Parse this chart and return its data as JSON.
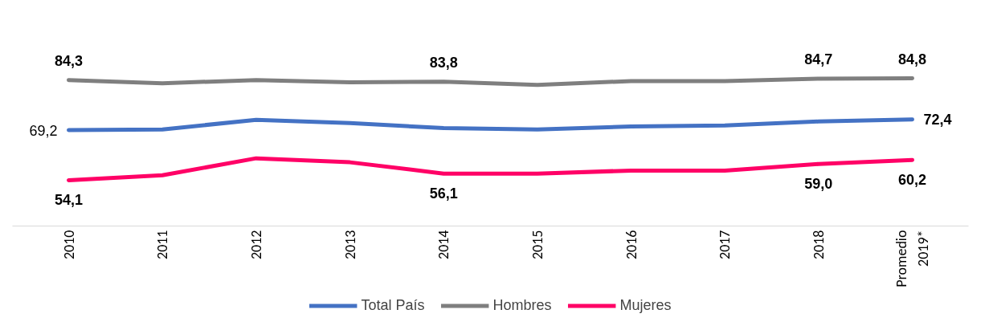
{
  "chart_data": {
    "type": "line",
    "categories": [
      "2010",
      "2011",
      "2012",
      "2013",
      "2014",
      "2015",
      "2016",
      "2017",
      "2018",
      "Promedio\n2019*"
    ],
    "series": [
      {
        "name": "Total País",
        "color": "#4472c4",
        "values": [
          69.2,
          69.4,
          72.3,
          71.3,
          69.8,
          69.4,
          70.3,
          70.6,
          71.8,
          72.4
        ],
        "value_labels": [
          "69,2",
          null,
          null,
          null,
          null,
          null,
          null,
          null,
          null,
          "72,4"
        ]
      },
      {
        "name": "Hombres",
        "color": "#7f7f7f",
        "values": [
          84.3,
          83.3,
          84.3,
          83.6,
          83.8,
          82.8,
          84.0,
          84.0,
          84.7,
          84.8
        ],
        "value_labels": [
          "84,3",
          null,
          null,
          null,
          "83,8",
          null,
          null,
          null,
          "84,7",
          "84,8"
        ]
      },
      {
        "name": "Mujeres",
        "color": "#ff0066",
        "values": [
          54.1,
          55.6,
          60.7,
          59.5,
          56.1,
          56.1,
          57.0,
          57.0,
          59.0,
          60.2
        ],
        "value_labels": [
          "54,1",
          null,
          null,
          null,
          "56,1",
          null,
          null,
          null,
          "59,0",
          "60,2"
        ]
      }
    ],
    "legend": "bottom",
    "marker": "none",
    "line_style": "solid",
    "tick_labels": "x"
  }
}
